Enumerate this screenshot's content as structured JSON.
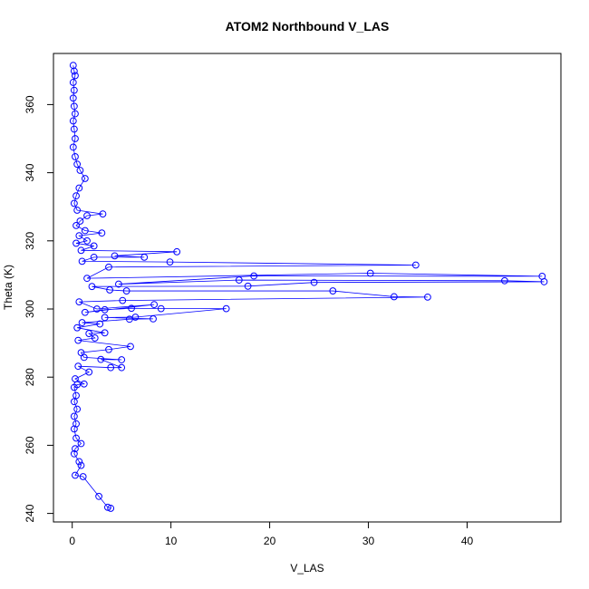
{
  "chart_data": {
    "type": "scatter",
    "title": "ATOM2 Northbound V_LAS",
    "xlabel": "V_LAS",
    "ylabel": "Theta (K)",
    "xlim": [
      -1.9,
      49.5
    ],
    "ylim": [
      237.5,
      375.0
    ],
    "xticks": [
      0,
      10,
      20,
      30,
      40
    ],
    "yticks": [
      240,
      260,
      280,
      300,
      320,
      340,
      360
    ],
    "grid": false,
    "legend": "none",
    "series": [
      {
        "color": "#0000ff",
        "marker": "open-circle",
        "line": true,
        "points": [
          [
            3.9,
            241.5
          ],
          [
            3.6,
            241.8
          ],
          [
            2.7,
            245.0
          ],
          [
            1.1,
            250.8
          ],
          [
            0.3,
            251.2
          ],
          [
            0.9,
            254.1
          ],
          [
            0.7,
            255.2
          ],
          [
            0.2,
            257.5
          ],
          [
            0.3,
            259.0
          ],
          [
            0.9,
            260.5
          ],
          [
            0.4,
            262.1
          ],
          [
            0.2,
            264.8
          ],
          [
            0.4,
            266.3
          ],
          [
            0.2,
            268.5
          ],
          [
            0.5,
            270.6
          ],
          [
            0.2,
            272.8
          ],
          [
            0.4,
            274.6
          ],
          [
            0.2,
            277.0
          ],
          [
            0.5,
            277.8
          ],
          [
            1.2,
            278.0
          ],
          [
            0.3,
            279.5
          ],
          [
            1.7,
            281.5
          ],
          [
            0.6,
            283.2
          ],
          [
            3.9,
            282.8
          ],
          [
            5.0,
            282.8
          ],
          [
            2.9,
            285.2
          ],
          [
            5.0,
            285.1
          ],
          [
            1.2,
            285.8
          ],
          [
            0.9,
            287.2
          ],
          [
            3.7,
            288.1
          ],
          [
            5.9,
            289.0
          ],
          [
            0.6,
            290.8
          ],
          [
            2.3,
            291.5
          ],
          [
            1.7,
            292.8
          ],
          [
            3.3,
            293.0
          ],
          [
            0.5,
            294.5
          ],
          [
            2.8,
            295.6
          ],
          [
            1.0,
            296.0
          ],
          [
            5.8,
            297.0
          ],
          [
            8.2,
            297.1
          ],
          [
            3.3,
            297.5
          ],
          [
            6.4,
            297.6
          ],
          [
            15.6,
            300.1
          ],
          [
            9.0,
            300.1
          ],
          [
            6.0,
            300.2
          ],
          [
            3.3,
            299.8
          ],
          [
            1.3,
            299.0
          ],
          [
            8.3,
            301.3
          ],
          [
            2.5,
            300.0
          ],
          [
            0.7,
            302.1
          ],
          [
            5.1,
            302.5
          ],
          [
            36.0,
            303.5
          ],
          [
            32.6,
            303.6
          ],
          [
            26.4,
            305.3
          ],
          [
            5.5,
            305.3
          ],
          [
            3.8,
            305.6
          ],
          [
            2.0,
            306.6
          ],
          [
            17.8,
            306.7
          ],
          [
            24.5,
            307.8
          ],
          [
            47.8,
            308.0
          ],
          [
            43.8,
            308.3
          ],
          [
            16.9,
            308.5
          ],
          [
            4.7,
            307.3
          ],
          [
            18.4,
            309.7
          ],
          [
            47.6,
            309.6
          ],
          [
            30.2,
            310.5
          ],
          [
            1.5,
            309.0
          ],
          [
            3.7,
            312.3
          ],
          [
            34.8,
            312.9
          ],
          [
            9.9,
            313.8
          ],
          [
            1.0,
            314.0
          ],
          [
            2.2,
            315.2
          ],
          [
            7.3,
            315.2
          ],
          [
            4.3,
            315.6
          ],
          [
            10.6,
            316.8
          ],
          [
            0.9,
            317.2
          ],
          [
            2.2,
            318.5
          ],
          [
            0.4,
            319.3
          ],
          [
            1.5,
            320.0
          ],
          [
            0.7,
            321.5
          ],
          [
            3.0,
            322.3
          ],
          [
            1.3,
            323.0
          ],
          [
            0.4,
            324.5
          ],
          [
            0.8,
            325.8
          ],
          [
            1.5,
            327.4
          ],
          [
            3.1,
            327.9
          ],
          [
            0.5,
            329.0
          ],
          [
            0.2,
            331.0
          ],
          [
            0.4,
            333.2
          ],
          [
            0.7,
            335.5
          ],
          [
            1.3,
            338.3
          ],
          [
            0.8,
            340.7
          ],
          [
            0.5,
            342.5
          ],
          [
            0.3,
            344.7
          ],
          [
            0.1,
            347.5
          ],
          [
            0.3,
            350.0
          ],
          [
            0.2,
            352.8
          ],
          [
            0.1,
            355.2
          ],
          [
            0.3,
            357.3
          ],
          [
            0.2,
            359.5
          ],
          [
            0.1,
            361.9
          ],
          [
            0.2,
            364.2
          ],
          [
            0.1,
            366.5
          ],
          [
            0.3,
            368.5
          ],
          [
            0.2,
            369.8
          ],
          [
            0.1,
            371.5
          ]
        ]
      }
    ]
  }
}
